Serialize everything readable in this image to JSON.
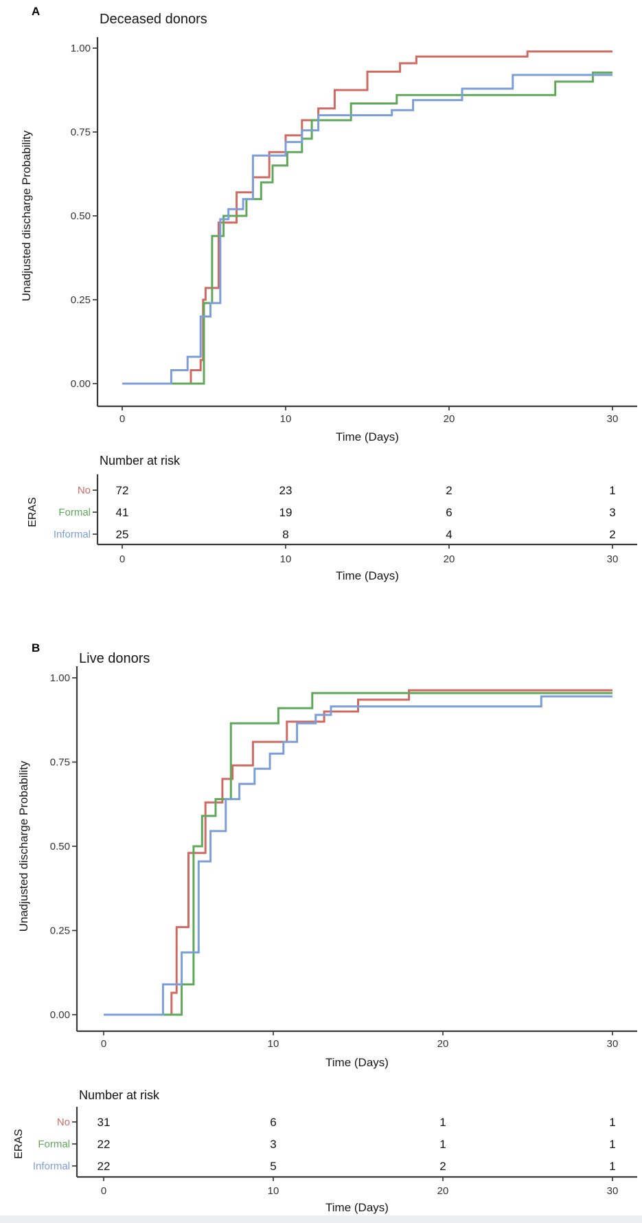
{
  "chart_data": [
    {
      "type": "line",
      "step": true,
      "panel": "A",
      "title": "Deceased donors",
      "xlabel": "Time (Days)",
      "ylabel": "Unadjusted discharge Probability",
      "xlim": [
        0,
        30
      ],
      "ylim": [
        0,
        1
      ],
      "xticks": [
        0,
        10,
        20,
        30
      ],
      "yticks": [
        "1.00",
        "0.75",
        "0.50",
        "0.25",
        "0.00"
      ],
      "grid": "off",
      "legend_position": "none",
      "series": [
        {
          "name": "No",
          "color": "#CF6A62",
          "points": [
            [
              0,
              0
            ],
            [
              4.2,
              0.04
            ],
            [
              4.8,
              0.07
            ],
            [
              4.95,
              0.25
            ],
            [
              5.1,
              0.285
            ],
            [
              5.9,
              0.48
            ],
            [
              7,
              0.57
            ],
            [
              8,
              0.615
            ],
            [
              9,
              0.69
            ],
            [
              10,
              0.74
            ],
            [
              11,
              0.785
            ],
            [
              12,
              0.82
            ],
            [
              13,
              0.875
            ],
            [
              15,
              0.93
            ],
            [
              17,
              0.955
            ],
            [
              18,
              0.975
            ],
            [
              24.8,
              0.99
            ],
            [
              30,
              0.99
            ]
          ]
        },
        {
          "name": "Formal",
          "color": "#5FA85A",
          "points": [
            [
              0,
              0
            ],
            [
              5.0,
              0.24
            ],
            [
              5.5,
              0.44
            ],
            [
              6.2,
              0.5
            ],
            [
              7.6,
              0.55
            ],
            [
              8.5,
              0.6
            ],
            [
              9.2,
              0.65
            ],
            [
              10.1,
              0.69
            ],
            [
              11,
              0.73
            ],
            [
              11.6,
              0.785
            ],
            [
              14.0,
              0.835
            ],
            [
              16.8,
              0.86
            ],
            [
              26.5,
              0.9
            ],
            [
              28.8,
              0.927
            ],
            [
              30,
              0.927
            ]
          ]
        },
        {
          "name": "Informal",
          "color": "#7C9ED8",
          "points": [
            [
              0,
              0
            ],
            [
              3,
              0.04
            ],
            [
              4,
              0.08
            ],
            [
              4.8,
              0.2
            ],
            [
              5.4,
              0.24
            ],
            [
              6.0,
              0.49
            ],
            [
              6.5,
              0.52
            ],
            [
              7.4,
              0.55
            ],
            [
              8.0,
              0.68
            ],
            [
              10,
              0.72
            ],
            [
              11,
              0.755
            ],
            [
              12,
              0.8
            ],
            [
              16.5,
              0.815
            ],
            [
              17.8,
              0.845
            ],
            [
              20.8,
              0.879
            ],
            [
              23.9,
              0.92
            ],
            [
              30,
              0.92
            ]
          ]
        }
      ],
      "risk_table": {
        "title": "Number at risk",
        "group_label": "ERAS",
        "time_label": "Time (Days)",
        "times": [
          0,
          10,
          20,
          30
        ],
        "rows": [
          {
            "label": "No",
            "color": "#CF6A62",
            "values": [
              72,
              23,
              2,
              1
            ]
          },
          {
            "label": "Formal",
            "color": "#5FA85A",
            "values": [
              41,
              19,
              6,
              3
            ]
          },
          {
            "label": "Informal",
            "color": "#7C9ED8",
            "values": [
              25,
              8,
              4,
              2
            ]
          }
        ]
      }
    },
    {
      "type": "line",
      "step": true,
      "panel": "B",
      "title": "Live donors",
      "xlabel": "Time (Days)",
      "ylabel": "Unadjusted discharge Probability",
      "xlim": [
        0,
        30
      ],
      "ylim": [
        0,
        1
      ],
      "xticks": [
        0,
        10,
        20,
        30
      ],
      "yticks": [
        "1.00",
        "0.75",
        "0.50",
        "0.25",
        "0.00"
      ],
      "grid": "off",
      "legend_position": "none",
      "series": [
        {
          "name": "No",
          "color": "#CF6A62",
          "points": [
            [
              0,
              0
            ],
            [
              4.0,
              0.065
            ],
            [
              4.3,
              0.26
            ],
            [
              5.0,
              0.48
            ],
            [
              6.0,
              0.63
            ],
            [
              7.0,
              0.7
            ],
            [
              7.6,
              0.74
            ],
            [
              8.8,
              0.81
            ],
            [
              10.8,
              0.87
            ],
            [
              13.0,
              0.9
            ],
            [
              15.0,
              0.935
            ],
            [
              18.0,
              0.963
            ],
            [
              30,
              0.963
            ]
          ]
        },
        {
          "name": "Formal",
          "color": "#5FA85A",
          "points": [
            [
              0,
              0
            ],
            [
              4.6,
              0.09
            ],
            [
              5.3,
              0.5
            ],
            [
              5.8,
              0.59
            ],
            [
              6.6,
              0.64
            ],
            [
              7.5,
              0.865
            ],
            [
              10.3,
              0.91
            ],
            [
              12.3,
              0.955
            ],
            [
              30,
              0.955
            ]
          ]
        },
        {
          "name": "Informal",
          "color": "#7C9ED8",
          "points": [
            [
              0,
              0
            ],
            [
              3.5,
              0.09
            ],
            [
              4.6,
              0.185
            ],
            [
              5.6,
              0.455
            ],
            [
              6.3,
              0.545
            ],
            [
              7.2,
              0.64
            ],
            [
              8.0,
              0.685
            ],
            [
              8.9,
              0.73
            ],
            [
              9.8,
              0.775
            ],
            [
              10.6,
              0.81
            ],
            [
              11.4,
              0.865
            ],
            [
              12.5,
              0.89
            ],
            [
              13.4,
              0.915
            ],
            [
              25.8,
              0.945
            ],
            [
              30,
              0.945
            ]
          ]
        }
      ],
      "risk_table": {
        "title": "Number at risk",
        "group_label": "ERAS",
        "time_label": "Time (Days)",
        "times": [
          0,
          10,
          20,
          30
        ],
        "rows": [
          {
            "label": "No",
            "color": "#CF6A62",
            "values": [
              31,
              6,
              1,
              1
            ]
          },
          {
            "label": "Formal",
            "color": "#5FA85A",
            "values": [
              22,
              3,
              1,
              1
            ]
          },
          {
            "label": "Informal",
            "color": "#7C9ED8",
            "values": [
              22,
              5,
              2,
              1
            ]
          }
        ]
      }
    }
  ]
}
